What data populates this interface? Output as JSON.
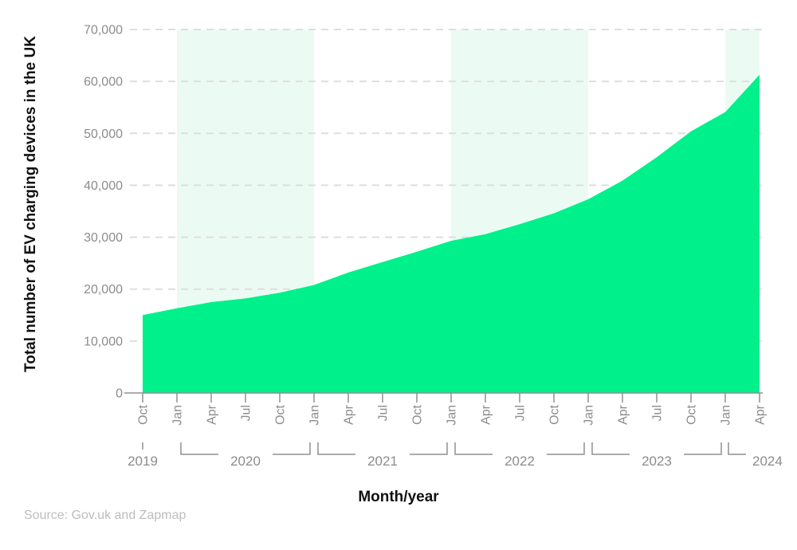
{
  "colors": {
    "area": "#00F08B",
    "band": "#EBFBF3",
    "grid": "#DEDEDE",
    "axis": "#909090",
    "tick_text": "#8c8c8c",
    "title_text": "#111111",
    "source_text": "#bdbdbd",
    "background": "#ffffff"
  },
  "chart_data": {
    "type": "area",
    "title": "",
    "ylabel": "Total number of EV charging devices in the UK",
    "xlabel": "Month/year",
    "source": "Source: Gov.uk and Zapmap",
    "x": [
      "Oct 2019",
      "Jan 2020",
      "Apr 2020",
      "Jul 2020",
      "Oct 2020",
      "Jan 2021",
      "Apr 2021",
      "Jul 2021",
      "Oct 2021",
      "Jan 2022",
      "Apr 2022",
      "Jul 2022",
      "Oct 2022",
      "Jan 2023",
      "Apr 2023",
      "Jul 2023",
      "Oct 2023",
      "Jan 2024",
      "Apr 2024"
    ],
    "values": [
      15000,
      16300,
      17500,
      18200,
      19300,
      20800,
      23200,
      25200,
      27200,
      29300,
      30600,
      32500,
      34600,
      37300,
      40900,
      45400,
      50400,
      54100,
      61300
    ],
    "ylim": [
      0,
      70000
    ],
    "ytick_step": 10000,
    "ytick_labels": [
      "0",
      "10,000",
      "20,000",
      "30,000",
      "40,000",
      "50,000",
      "60,000",
      "70,000"
    ],
    "grid": "horizontal dashed",
    "legend": "none",
    "year_groups": [
      {
        "label": "2019",
        "from": 0,
        "to": 0,
        "style": "tick"
      },
      {
        "label": "2020",
        "from": 1,
        "to": 5,
        "style": "bracket"
      },
      {
        "label": "2021",
        "from": 5,
        "to": 9,
        "style": "bracket"
      },
      {
        "label": "2022",
        "from": 9,
        "to": 13,
        "style": "bracket"
      },
      {
        "label": "2023",
        "from": 13,
        "to": 17,
        "style": "bracket"
      },
      {
        "label": "2024",
        "from": 17,
        "to": 18,
        "style": "open"
      }
    ],
    "shaded_bands": [
      {
        "year": "2020",
        "from": 1,
        "to": 5
      },
      {
        "year": "2022",
        "from": 9,
        "to": 13
      },
      {
        "year": "2024",
        "from": 17,
        "to": 18
      }
    ]
  }
}
